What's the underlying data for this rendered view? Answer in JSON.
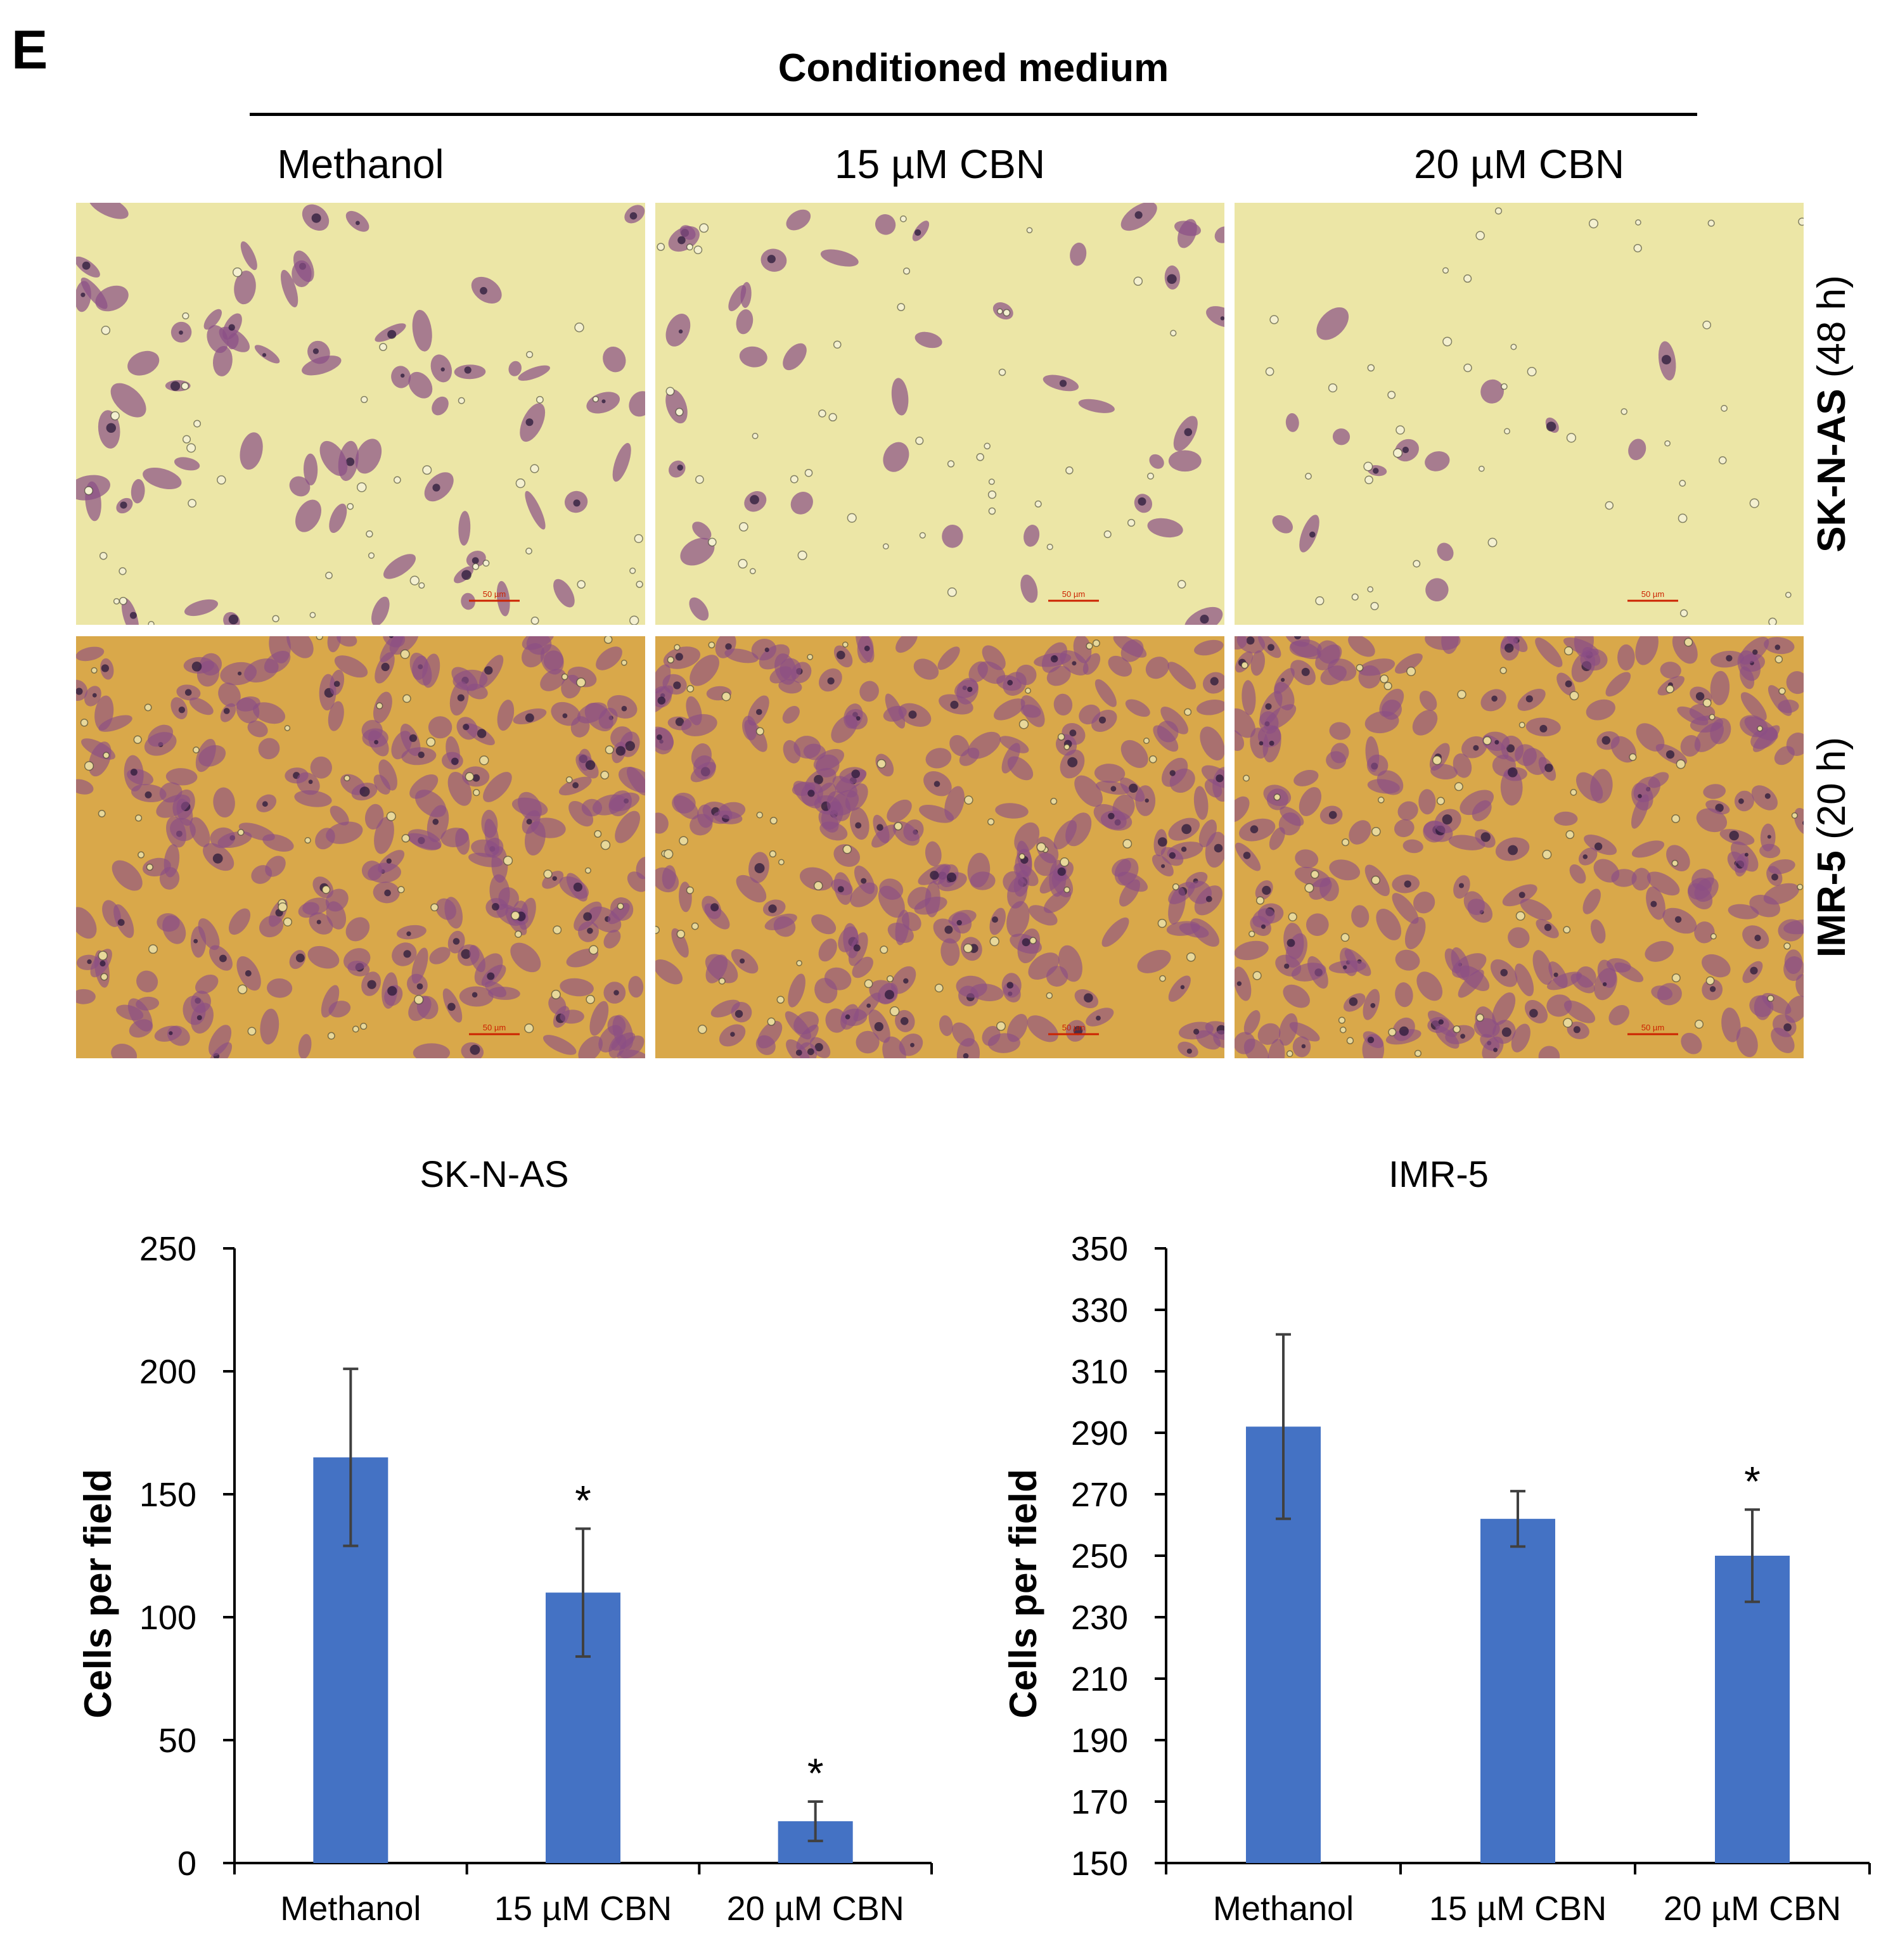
{
  "figure": {
    "panel_letter": "E",
    "group_title": "Conditioned medium",
    "columns": [
      "Methanol",
      "15 µM CBN",
      "20 µM CBN"
    ],
    "rows": [
      {
        "cell_line": "SK-N-AS",
        "duration": "(48 h)"
      },
      {
        "cell_line": "IMR-5",
        "duration": "(20 h)"
      }
    ],
    "scale_bar_label": "50 µm"
  },
  "colors": {
    "bar": "#4472C4",
    "error_bar": "#404040",
    "skn_background": "#ECE6A6",
    "imr_background": "#D9A84A",
    "cell_stain": "#8A4E86",
    "scale_bar": "#CC2200"
  },
  "chart_data": [
    {
      "type": "bar",
      "title": "SK-N-AS",
      "xlabel": "",
      "ylabel": "Cells per field",
      "categories": [
        "Methanol",
        "15 µM CBN",
        "20 µM CBN"
      ],
      "values": [
        165,
        110,
        17
      ],
      "errors": [
        36,
        26,
        8
      ],
      "significance": [
        "",
        "*",
        "*"
      ],
      "ylim": [
        0,
        250
      ],
      "yticks": [
        0,
        50,
        100,
        150,
        200,
        250
      ],
      "grid": false
    },
    {
      "type": "bar",
      "title": "IMR-5",
      "xlabel": "",
      "ylabel": "Cells per field",
      "categories": [
        "Methanol",
        "15 µM CBN",
        "20 µM CBN"
      ],
      "values": [
        292,
        262,
        250
      ],
      "errors": [
        30,
        9,
        15
      ],
      "significance": [
        "",
        "",
        "*"
      ],
      "ylim": [
        150,
        350
      ],
      "yticks": [
        150,
        170,
        190,
        210,
        230,
        250,
        270,
        290,
        310,
        330,
        350
      ],
      "grid": false
    }
  ]
}
